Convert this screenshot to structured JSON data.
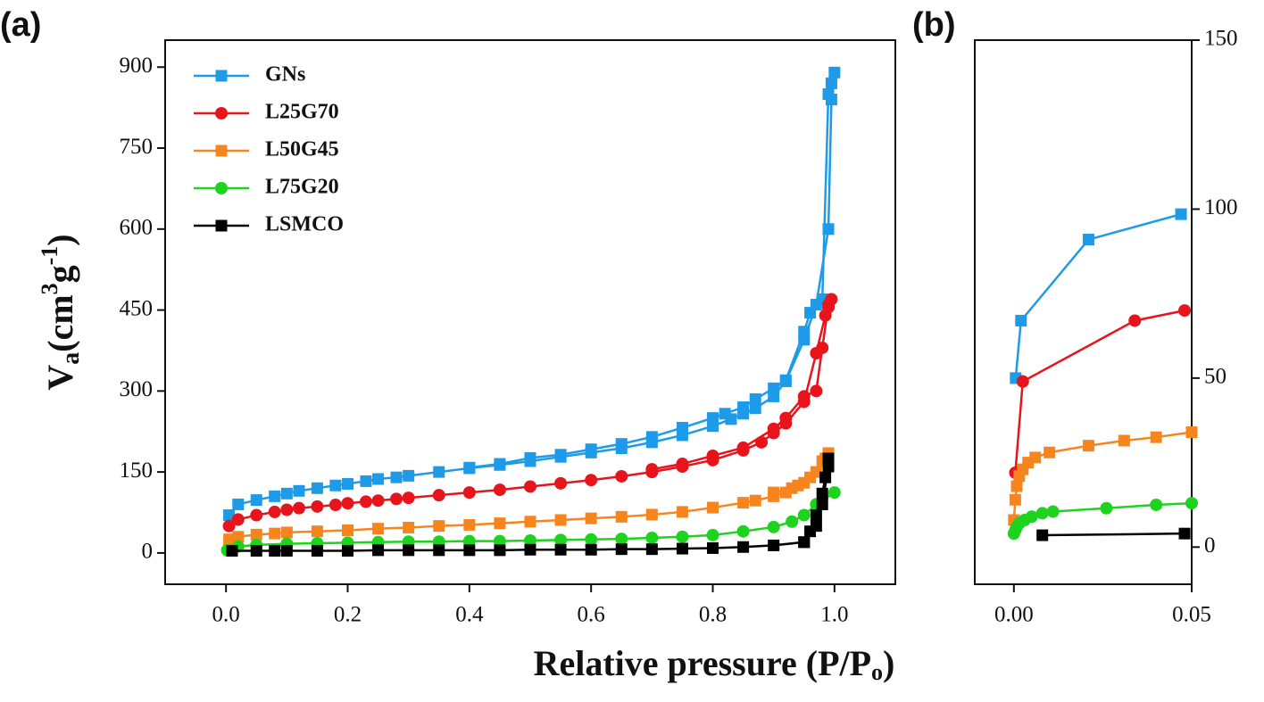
{
  "chart_data": [
    {
      "type": "line",
      "label": "(a)",
      "xlabel": [
        "Relative pressure (P/P",
        "o",
        ")"
      ],
      "ylabel": [
        "V",
        "a",
        "(cm",
        "3",
        "g",
        "-1",
        ")"
      ],
      "xlim": [
        -0.1,
        1.1
      ],
      "ylim": [
        -58,
        950
      ],
      "xticks": [
        {
          "value": 0,
          "label": "0.0"
        },
        0.2,
        0.4,
        0.6,
        0.8,
        {
          "value": 1,
          "label": "1.0"
        }
      ],
      "yticks": [
        0,
        150,
        300,
        450,
        600,
        750,
        900
      ],
      "legend": "upper left",
      "yaxis_side": "left",
      "series": [
        {
          "name": "GNs",
          "color": "#1e9be8",
          "marker": "square",
          "x": [
            0.005,
            0.02,
            0.05,
            0.08,
            0.1,
            0.12,
            0.15,
            0.18,
            0.2,
            0.23,
            0.25,
            0.28,
            0.3,
            0.35,
            0.4,
            0.45,
            0.5,
            0.55,
            0.6,
            0.65,
            0.7,
            0.75,
            0.8,
            0.83,
            0.85,
            0.87,
            0.9,
            0.92,
            0.95,
            0.97,
            0.99,
            0.995,
            1.0,
            0.995,
            0.99,
            0.98,
            0.96,
            0.95,
            0.92,
            0.9,
            0.87,
            0.85,
            0.82,
            0.8,
            0.75,
            0.7,
            0.65,
            0.6,
            0.55,
            0.5,
            0.45,
            0.4
          ],
          "values": [
            70,
            90,
            98,
            105,
            110,
            115,
            120,
            125,
            128,
            133,
            137,
            140,
            143,
            150,
            157,
            163,
            170,
            178,
            186,
            194,
            205,
            218,
            235,
            248,
            258,
            268,
            290,
            318,
            395,
            460,
            600,
            840,
            890,
            870,
            850,
            470,
            445,
            410,
            320,
            305,
            285,
            270,
            258,
            250,
            232,
            215,
            202,
            192,
            182,
            176,
            165,
            158
          ]
        },
        {
          "name": "L25G70",
          "color": "#e8141c",
          "marker": "circle",
          "x": [
            0.005,
            0.02,
            0.05,
            0.08,
            0.1,
            0.12,
            0.15,
            0.18,
            0.2,
            0.23,
            0.25,
            0.28,
            0.3,
            0.35,
            0.4,
            0.45,
            0.5,
            0.55,
            0.6,
            0.65,
            0.7,
            0.75,
            0.8,
            0.85,
            0.88,
            0.9,
            0.92,
            0.95,
            0.97,
            0.985,
            0.99,
            0.995,
            0.99,
            0.98,
            0.97,
            0.95,
            0.92,
            0.9,
            0.85,
            0.8,
            0.75,
            0.7
          ],
          "values": [
            50,
            62,
            70,
            76,
            80,
            83,
            86,
            89,
            92,
            95,
            97,
            100,
            102,
            107,
            112,
            117,
            123,
            129,
            135,
            142,
            150,
            160,
            172,
            190,
            205,
            222,
            240,
            280,
            370,
            440,
            455,
            470,
            460,
            380,
            300,
            290,
            250,
            230,
            195,
            180,
            165,
            155
          ]
        },
        {
          "name": "L50G45",
          "color": "#f7851d",
          "marker": "square",
          "x": [
            0.005,
            0.02,
            0.05,
            0.08,
            0.1,
            0.15,
            0.2,
            0.25,
            0.3,
            0.35,
            0.4,
            0.45,
            0.5,
            0.55,
            0.6,
            0.65,
            0.7,
            0.75,
            0.8,
            0.85,
            0.87,
            0.9,
            0.92,
            0.94,
            0.96,
            0.98,
            0.99,
            0.985,
            0.97,
            0.95,
            0.93,
            0.9
          ],
          "values": [
            25,
            30,
            34,
            36,
            38,
            40,
            42,
            45,
            47,
            50,
            52,
            55,
            58,
            61,
            64,
            67,
            71,
            76,
            84,
            93,
            97,
            105,
            112,
            125,
            140,
            170,
            185,
            175,
            150,
            130,
            120,
            112
          ]
        },
        {
          "name": "L75G20",
          "color": "#1ed31e",
          "marker": "circle",
          "x": [
            0.002,
            0.02,
            0.05,
            0.1,
            0.15,
            0.2,
            0.25,
            0.3,
            0.35,
            0.4,
            0.45,
            0.5,
            0.55,
            0.6,
            0.65,
            0.7,
            0.75,
            0.8,
            0.85,
            0.9,
            0.93,
            0.95,
            0.97,
            1.0
          ],
          "values": [
            5,
            12,
            15,
            17,
            18,
            19,
            20,
            21,
            21,
            22,
            22,
            23,
            24,
            25,
            26,
            28,
            30,
            33,
            40,
            48,
            58,
            70,
            90,
            112
          ]
        },
        {
          "name": "LSMCO",
          "color": "#000000",
          "marker": "square",
          "x": [
            0.01,
            0.05,
            0.08,
            0.1,
            0.15,
            0.2,
            0.25,
            0.3,
            0.35,
            0.4,
            0.45,
            0.5,
            0.55,
            0.6,
            0.65,
            0.7,
            0.75,
            0.8,
            0.85,
            0.9,
            0.95,
            0.96,
            0.97,
            0.98,
            0.985,
            0.99,
            0.99,
            0.98,
            0.97,
            0.95
          ],
          "values": [
            4,
            4,
            4,
            4,
            4,
            4,
            5,
            5,
            5,
            5,
            5,
            6,
            6,
            6,
            7,
            7,
            8,
            9,
            11,
            14,
            20,
            40,
            70,
            110,
            140,
            175,
            160,
            90,
            50,
            20
          ]
        }
      ]
    },
    {
      "type": "line",
      "label": "(b)",
      "xlim": [
        -0.011,
        0.05
      ],
      "ylim": [
        -11,
        150
      ],
      "xticks": [
        {
          "value": 0,
          "label": "0.00"
        },
        0.05
      ],
      "yticks": [
        0,
        50,
        100,
        150
      ],
      "yaxis_side": "right",
      "series": [
        {
          "color": "#1e9be8",
          "marker": "square",
          "x": [
            0.0005,
            0.002,
            0.021,
            0.047
          ],
          "values": [
            50,
            67,
            91,
            98.5
          ]
        },
        {
          "color": "#e8141c",
          "marker": "circle",
          "x": [
            0.0004,
            0.0025,
            0.034,
            0.048
          ],
          "values": [
            22,
            49,
            67,
            70
          ]
        },
        {
          "color": "#f7851d",
          "marker": "square",
          "x": [
            0,
            0.0004,
            0.0008,
            0.0015,
            0.0025,
            0.004,
            0.006,
            0.01,
            0.021,
            0.031,
            0.04,
            0.05
          ],
          "values": [
            8,
            14,
            18,
            21,
            23,
            25,
            26.5,
            28,
            30,
            31.5,
            32.5,
            34
          ]
        },
        {
          "color": "#1ed31e",
          "marker": "circle",
          "x": [
            0,
            0.0004,
            0.0008,
            0.0015,
            0.003,
            0.005,
            0.008,
            0.011,
            0.026,
            0.04,
            0.05
          ],
          "values": [
            4,
            5,
            6,
            7,
            8,
            9,
            10,
            10.5,
            11.5,
            12.5,
            13
          ]
        },
        {
          "color": "#000000",
          "marker": "square",
          "x": [
            0.008,
            0.048
          ],
          "values": [
            3.5,
            4
          ]
        }
      ]
    }
  ]
}
